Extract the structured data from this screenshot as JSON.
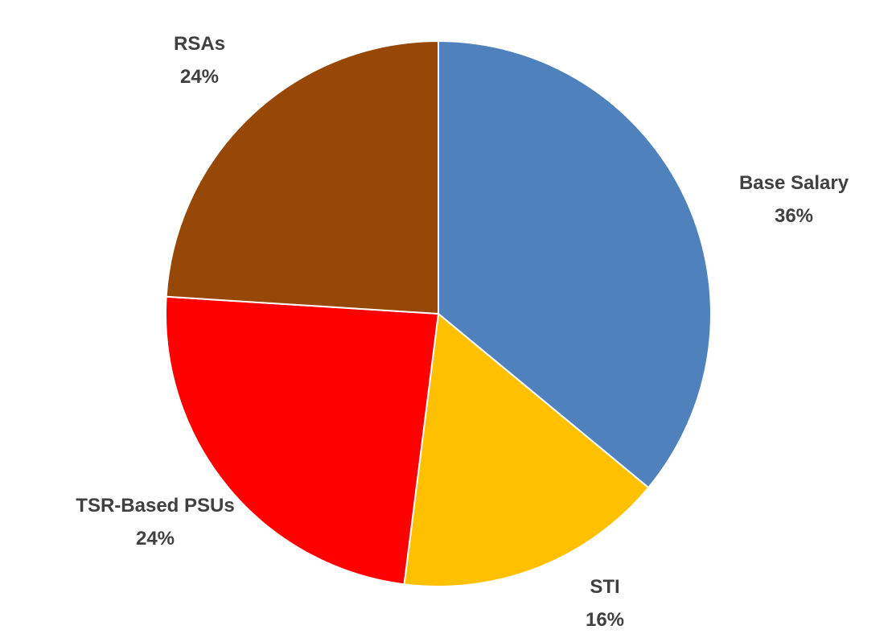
{
  "chart_data": {
    "type": "pie",
    "title": "",
    "slices": [
      {
        "name": "Base Salary",
        "value": 36,
        "label": "36%",
        "color": "#4F81BD"
      },
      {
        "name": "STI",
        "value": 16,
        "label": "16%",
        "color": "#FFC000"
      },
      {
        "name": "TSR-Based PSUs",
        "value": 24,
        "label": "24%",
        "color": "#FF0000"
      },
      {
        "name": "RSAs",
        "value": 24,
        "label": "24%",
        "color": "#974706"
      }
    ],
    "start_angle_deg": 0,
    "direction": "clockwise",
    "legend": "none",
    "data_labels": "outside"
  }
}
